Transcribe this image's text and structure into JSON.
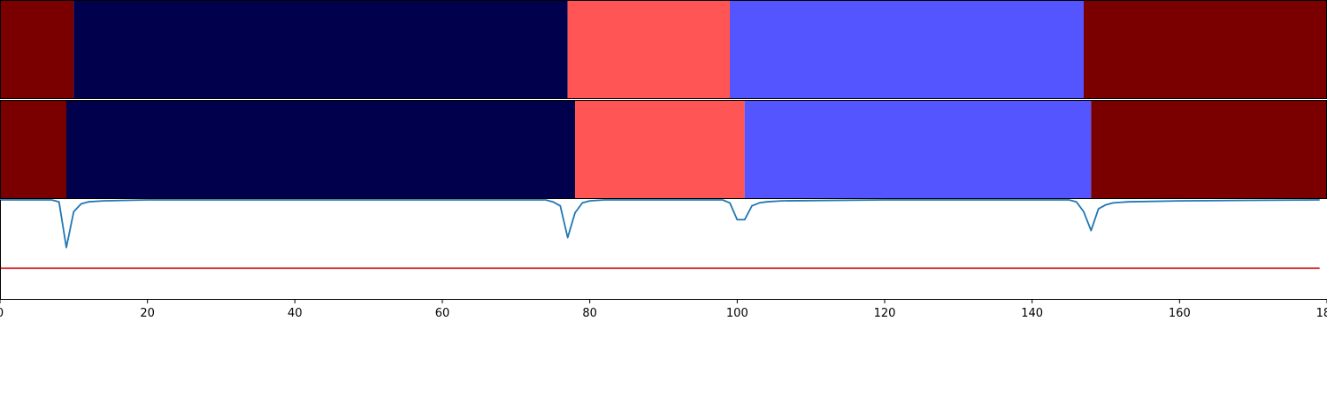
{
  "chart_data": [
    {
      "type": "bar",
      "orientation": "horizontal-segments",
      "panel": "row-1",
      "xlim": [
        0,
        180
      ],
      "segments": [
        {
          "start": 0,
          "end": 10,
          "color": "#7a0000"
        },
        {
          "start": 10,
          "end": 77,
          "color": "#00004d"
        },
        {
          "start": 77,
          "end": 99,
          "color": "#ff5555"
        },
        {
          "start": 99,
          "end": 147,
          "color": "#5555ff"
        },
        {
          "start": 147,
          "end": 180,
          "color": "#7a0000"
        }
      ]
    },
    {
      "type": "bar",
      "orientation": "horizontal-segments",
      "panel": "row-2",
      "xlim": [
        0,
        180
      ],
      "segments": [
        {
          "start": 0,
          "end": 9,
          "color": "#7a0000"
        },
        {
          "start": 9,
          "end": 78,
          "color": "#00004d"
        },
        {
          "start": 78,
          "end": 101,
          "color": "#ff5555"
        },
        {
          "start": 101,
          "end": 148,
          "color": "#5555ff"
        },
        {
          "start": 148,
          "end": 180,
          "color": "#7a0000"
        }
      ]
    },
    {
      "type": "line",
      "panel": "row-3",
      "xlim": [
        0,
        180
      ],
      "ylim": [
        -1.0,
        0.0
      ],
      "grid": false,
      "series": [
        {
          "color": "#1f77b4",
          "x": [
            0,
            7,
            8,
            9,
            10,
            11,
            12,
            14,
            20,
            60,
            74,
            75,
            76,
            77,
            78,
            79,
            80,
            82,
            90,
            98,
            99,
            100,
            101,
            102,
            103,
            104,
            106,
            120,
            145,
            146,
            147,
            148,
            149,
            150,
            151,
            153,
            160,
            179
          ],
          "y": [
            0.0,
            0.0,
            -0.02,
            -0.48,
            -0.12,
            -0.04,
            -0.02,
            -0.01,
            0.0,
            0.0,
            0.0,
            -0.02,
            -0.06,
            -0.38,
            -0.13,
            -0.03,
            -0.01,
            0.0,
            0.0,
            0.0,
            -0.03,
            -0.2,
            -0.2,
            -0.06,
            -0.03,
            -0.02,
            -0.01,
            0.0,
            0.0,
            -0.02,
            -0.12,
            -0.31,
            -0.09,
            -0.05,
            -0.03,
            -0.02,
            -0.01,
            0.0
          ]
        }
      ],
      "hlines": [
        {
          "y": -0.69,
          "color": "#d62728"
        }
      ]
    }
  ],
  "xaxis": {
    "ticks": [
      {
        "value": 0,
        "label": "0"
      },
      {
        "value": 20,
        "label": "20"
      },
      {
        "value": 40,
        "label": "40"
      },
      {
        "value": 60,
        "label": "60"
      },
      {
        "value": 80,
        "label": "80"
      },
      {
        "value": 100,
        "label": "100"
      },
      {
        "value": 120,
        "label": "120"
      },
      {
        "value": 140,
        "label": "140"
      },
      {
        "value": 160,
        "label": "160"
      },
      {
        "value": 180,
        "label": "180"
      }
    ]
  }
}
